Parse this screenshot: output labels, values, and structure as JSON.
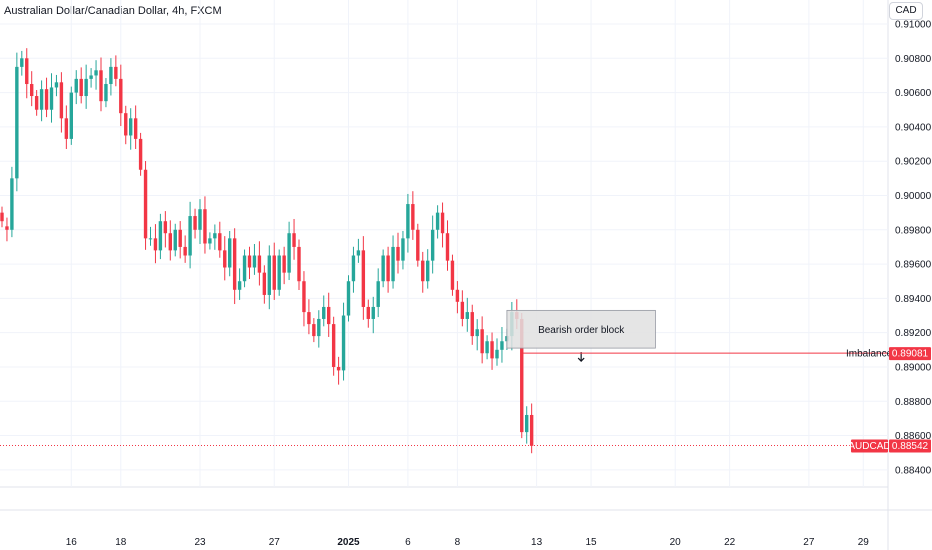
{
  "header": {
    "title": "Australian Dollar/Canadian Dollar, 4h, FXCM",
    "currency": "CAD"
  },
  "colors": {
    "up": "#26a69a",
    "down": "#f23645",
    "grid": "#f0f3fa",
    "axis_text": "#131722",
    "price_line": "#f23645"
  },
  "annotations": {
    "order_block_label": "Bearish order block",
    "imbalance_label": "Imbalance",
    "imbalance_value": "0.89081",
    "symbol_label": "AUDCAD",
    "last_price": "0.88542"
  },
  "chart_data": {
    "type": "candlestick",
    "symbol": "AUDCAD",
    "timeframe": "4h",
    "ylim": [
      0.883,
      0.9114
    ],
    "y_ticks": [
      "0.91000",
      "0.90800",
      "0.90600",
      "0.90400",
      "0.90200",
      "0.90000",
      "0.89800",
      "0.89600",
      "0.89400",
      "0.89200",
      "0.89000",
      "0.88800",
      "0.88600",
      "0.88400"
    ],
    "x_ticks": [
      {
        "label": "16",
        "index": 14,
        "bold": false
      },
      {
        "label": "18",
        "index": 24,
        "bold": false
      },
      {
        "label": "23",
        "index": 40,
        "bold": false
      },
      {
        "label": "27",
        "index": 55,
        "bold": false
      },
      {
        "label": "2025",
        "index": 70,
        "bold": true
      },
      {
        "label": "6",
        "index": 82,
        "bold": false
      },
      {
        "label": "8",
        "index": 92,
        "bold": false
      },
      {
        "label": "13",
        "index": 108,
        "bold": false
      },
      {
        "label": "15",
        "index": 119,
        "bold": false
      },
      {
        "label": "20",
        "index": 136,
        "bold": false
      },
      {
        "label": "22",
        "index": 147,
        "bold": false
      },
      {
        "label": "27",
        "index": 163,
        "bold": false
      },
      {
        "label": "29",
        "index": 174,
        "bold": false
      }
    ],
    "order_block": {
      "start_index": 102,
      "end_index": 132,
      "top": 0.8933,
      "bottom": 0.8911
    },
    "imbalance_price": 0.89081,
    "last_price": 0.88542,
    "closes": [
      0.8985,
      0.898,
      0.901,
      0.9075,
      0.908,
      0.9065,
      0.9058,
      0.905,
      0.9062,
      0.905,
      0.9063,
      0.9066,
      0.9045,
      0.9033,
      0.906,
      0.9068,
      0.9058,
      0.9068,
      0.907,
      0.9073,
      0.9055,
      0.9065,
      0.9075,
      0.9068,
      0.9048,
      0.9035,
      0.9045,
      0.9033,
      0.9015,
      0.8975,
      0.8975,
      0.8968,
      0.8985,
      0.8978,
      0.8968,
      0.898,
      0.897,
      0.8965,
      0.8988,
      0.898,
      0.8992,
      0.8972,
      0.8975,
      0.8978,
      0.8968,
      0.8958,
      0.8975,
      0.8945,
      0.895,
      0.8965,
      0.8958,
      0.8965,
      0.8955,
      0.8942,
      0.8965,
      0.8945,
      0.8965,
      0.8955,
      0.8978,
      0.897,
      0.895,
      0.8932,
      0.8925,
      0.8918,
      0.8928,
      0.8935,
      0.8925,
      0.89,
      0.8898,
      0.893,
      0.895,
      0.8965,
      0.8968,
      0.8935,
      0.8928,
      0.8935,
      0.895,
      0.8965,
      0.895,
      0.897,
      0.8962,
      0.8975,
      0.8995,
      0.898,
      0.8962,
      0.895,
      0.8962,
      0.898,
      0.899,
      0.8978,
      0.8962,
      0.8945,
      0.8938,
      0.8928,
      0.8932,
      0.8918,
      0.8922,
      0.8908,
      0.8915,
      0.8905,
      0.891,
      0.8915,
      0.8918,
      0.8932,
      0.8928,
      0.8862,
      0.8872,
      0.8854
    ],
    "opens": [
      0.899,
      0.8982,
      0.898,
      0.901,
      0.9075,
      0.908,
      0.9065,
      0.9058,
      0.905,
      0.9062,
      0.905,
      0.9063,
      0.9066,
      0.9045,
      0.9033,
      0.906,
      0.9068,
      0.9058,
      0.9068,
      0.907,
      0.9073,
      0.9055,
      0.9065,
      0.9075,
      0.9068,
      0.9048,
      0.9035,
      0.9045,
      0.9033,
      0.9015,
      0.8975,
      0.8975,
      0.8968,
      0.8985,
      0.8978,
      0.8968,
      0.898,
      0.897,
      0.8965,
      0.8988,
      0.898,
      0.8992,
      0.8972,
      0.8975,
      0.8978,
      0.8968,
      0.8958,
      0.8975,
      0.8945,
      0.895,
      0.8965,
      0.8958,
      0.8965,
      0.8955,
      0.8942,
      0.8965,
      0.8945,
      0.8965,
      0.8955,
      0.8978,
      0.897,
      0.895,
      0.8932,
      0.8925,
      0.8918,
      0.8928,
      0.8935,
      0.8925,
      0.89,
      0.8898,
      0.893,
      0.895,
      0.8965,
      0.8968,
      0.8935,
      0.8928,
      0.8935,
      0.895,
      0.8965,
      0.895,
      0.897,
      0.8962,
      0.8975,
      0.8995,
      0.898,
      0.8962,
      0.895,
      0.8962,
      0.898,
      0.899,
      0.8978,
      0.8962,
      0.8945,
      0.8938,
      0.8928,
      0.8932,
      0.8918,
      0.8922,
      0.8908,
      0.8915,
      0.8905,
      0.891,
      0.8915,
      0.8918,
      0.8932,
      0.8928,
      0.8862,
      0.8872
    ]
  }
}
